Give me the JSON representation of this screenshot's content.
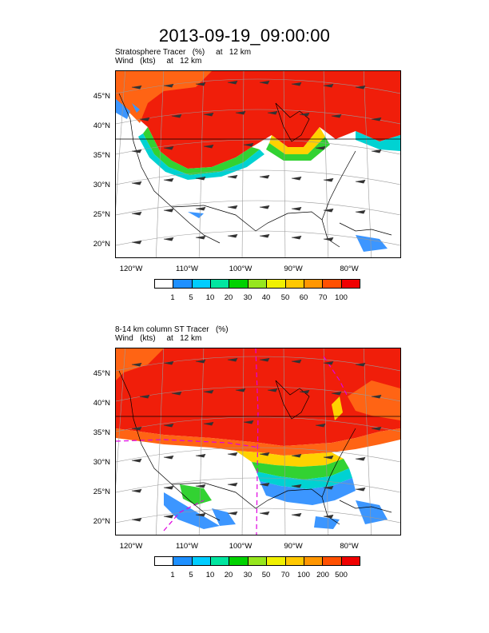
{
  "title": "2013-09-19_09:00:00",
  "panels": [
    {
      "subtitle_line1": "Stratosphere Tracer   (%)     at   12 km",
      "subtitle_line2": "Wind   (kts)     at   12 km",
      "lat_labels": [
        "45°N",
        "40°N",
        "35°N",
        "30°N",
        "25°N",
        "20°N"
      ],
      "lon_labels": [
        "120°W",
        "110°W",
        "100°W",
        "90°W",
        "80°W"
      ],
      "colorbar_labels": [
        "1",
        "5",
        "10",
        "20",
        "30",
        "40",
        "50",
        "60",
        "70",
        "100"
      ]
    },
    {
      "subtitle_line1": "8-14 km column ST Tracer   (%)",
      "subtitle_line2": "Wind   (kts)     at   12 km",
      "lat_labels": [
        "45°N",
        "40°N",
        "35°N",
        "30°N",
        "25°N",
        "20°N"
      ],
      "lon_labels": [
        "120°W",
        "110°W",
        "100°W",
        "90°W",
        "80°W"
      ],
      "colorbar_labels": [
        "1",
        "5",
        "10",
        "20",
        "30",
        "50",
        "70",
        "100",
        "200",
        "500"
      ]
    }
  ],
  "colorbar_colors": [
    "#ffffff",
    "#1e90ff",
    "#00cdff",
    "#00e6a0",
    "#00d200",
    "#96e61e",
    "#f0f000",
    "#ffc800",
    "#ff9600",
    "#ff5000",
    "#f00000"
  ],
  "field_colors": {
    "high": "#f01e0a",
    "orange": "#ff6414",
    "yellow": "#ffd200",
    "green": "#32d232",
    "cyan": "#00d2d2",
    "blue": "#3c96ff"
  }
}
